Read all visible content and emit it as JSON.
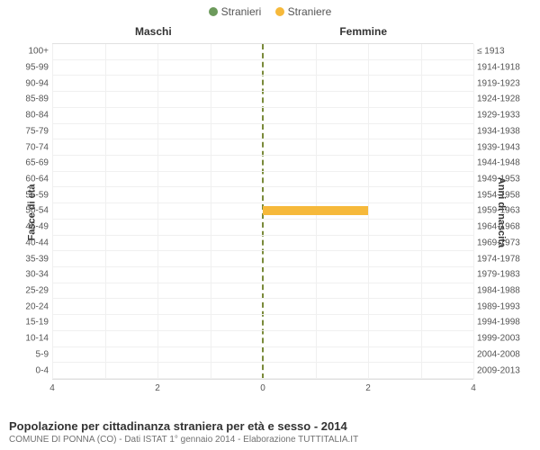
{
  "legend": {
    "items": [
      {
        "label": "Stranieri",
        "color": "#6c9a5b"
      },
      {
        "label": "Straniere",
        "color": "#f6b93b"
      }
    ]
  },
  "columns": {
    "left": "Maschi",
    "right": "Femmine"
  },
  "axes": {
    "left_label": "Fasce di età",
    "right_label": "Anni di nascita",
    "x_max": 4,
    "x_ticks": [
      4,
      2,
      0,
      2,
      4
    ]
  },
  "rows": [
    {
      "age": "100+",
      "birth": "≤ 1913",
      "m": 0,
      "f": 0
    },
    {
      "age": "95-99",
      "birth": "1914-1918",
      "m": 0,
      "f": 0
    },
    {
      "age": "90-94",
      "birth": "1919-1923",
      "m": 0,
      "f": 0
    },
    {
      "age": "85-89",
      "birth": "1924-1928",
      "m": 0,
      "f": 0
    },
    {
      "age": "80-84",
      "birth": "1929-1933",
      "m": 0,
      "f": 0
    },
    {
      "age": "75-79",
      "birth": "1934-1938",
      "m": 0,
      "f": 0
    },
    {
      "age": "70-74",
      "birth": "1939-1943",
      "m": 0,
      "f": 0
    },
    {
      "age": "65-69",
      "birth": "1944-1948",
      "m": 0,
      "f": 0
    },
    {
      "age": "60-64",
      "birth": "1949-1953",
      "m": 0,
      "f": 0
    },
    {
      "age": "55-59",
      "birth": "1954-1958",
      "m": 0,
      "f": 0
    },
    {
      "age": "50-54",
      "birth": "1959-1963",
      "m": 0,
      "f": 2
    },
    {
      "age": "45-49",
      "birth": "1964-1968",
      "m": 0,
      "f": 0
    },
    {
      "age": "40-44",
      "birth": "1969-1973",
      "m": 0,
      "f": 0
    },
    {
      "age": "35-39",
      "birth": "1974-1978",
      "m": 0,
      "f": 0
    },
    {
      "age": "30-34",
      "birth": "1979-1983",
      "m": 0,
      "f": 0
    },
    {
      "age": "25-29",
      "birth": "1984-1988",
      "m": 0,
      "f": 0
    },
    {
      "age": "20-24",
      "birth": "1989-1993",
      "m": 0,
      "f": 0
    },
    {
      "age": "15-19",
      "birth": "1994-1998",
      "m": 0,
      "f": 0
    },
    {
      "age": "10-14",
      "birth": "1999-2003",
      "m": 0,
      "f": 0
    },
    {
      "age": "5-9",
      "birth": "2004-2008",
      "m": 0,
      "f": 0
    },
    {
      "age": "0-4",
      "birth": "2009-2013",
      "m": 0,
      "f": 0
    }
  ],
  "colors": {
    "male_bar": "#6c9a5b",
    "female_bar": "#f6b93b",
    "grid": "#f0f0f0",
    "center_line": "#7a8a3a",
    "background": "#ffffff"
  },
  "footer": {
    "title": "Popolazione per cittadinanza straniera per età e sesso - 2014",
    "subtitle": "COMUNE DI PONNA (CO) - Dati ISTAT 1° gennaio 2014 - Elaborazione TUTTITALIA.IT"
  }
}
